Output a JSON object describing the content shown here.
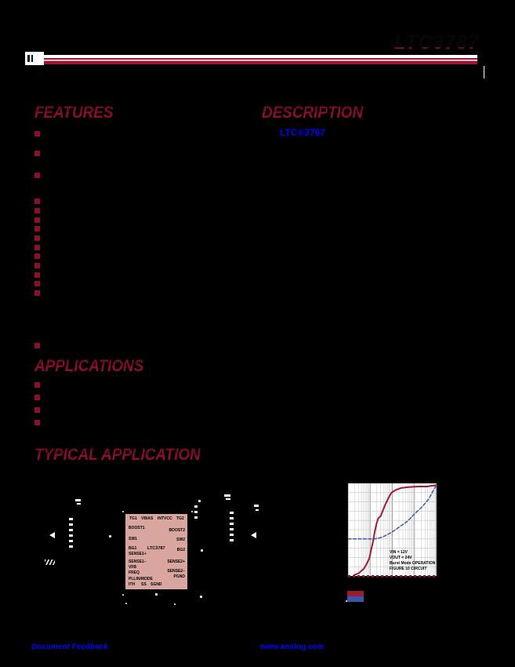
{
  "page": {
    "part_number": "LTC3787",
    "header_rule_color": "#9a1632",
    "footer": {
      "feedback_link": "Document Feedback",
      "website_link": "www.analog.com"
    }
  },
  "sections": {
    "features_title": "FEATURES",
    "description_title": "DESCRIPTION",
    "description_link": "LTC®3787",
    "applications_title": "APPLICATIONS",
    "typical_application_title": "TYPICAL APPLICATION",
    "features_bullet_count": 15,
    "applications_bullet_count": 4
  },
  "schematic": {
    "ic_label": "LTC3787",
    "ic_fill_color": "#d8a69f",
    "pins": {
      "top": [
        "TG1",
        "VBIAS",
        "INTVCC",
        "TG2"
      ],
      "left": [
        "BOOST1",
        "SW1",
        "BG1",
        "SENSE1+",
        "SENSE1−",
        "VFB",
        "FREQ",
        "PLLIN/MODE"
      ],
      "right": [
        "BOOST2",
        "SW2",
        "BG2",
        "SENSE2+",
        "SENSE2−",
        "PGND"
      ],
      "bottom": [
        "ITH",
        "SS",
        "SGND"
      ]
    }
  },
  "chart_data": {
    "type": "line",
    "x_axis": {
      "scale": "log",
      "decades": 4
    },
    "y_axis": {
      "divisions": 10
    },
    "grid": true,
    "series": [
      {
        "name": "efficiency-curve",
        "color": "#9b1b33",
        "style": "solid",
        "points_frac": [
          [
            0.07,
            0.99
          ],
          [
            0.12,
            0.97
          ],
          [
            0.18,
            0.92
          ],
          [
            0.21,
            0.87
          ],
          [
            0.24,
            0.81
          ],
          [
            0.26,
            0.72
          ],
          [
            0.28,
            0.64
          ],
          [
            0.3,
            0.53
          ],
          [
            0.32,
            0.44
          ],
          [
            0.34,
            0.38
          ],
          [
            0.37,
            0.35
          ],
          [
            0.39,
            0.3
          ],
          [
            0.42,
            0.23
          ],
          [
            0.46,
            0.15
          ],
          [
            0.49,
            0.1
          ],
          [
            0.54,
            0.07
          ],
          [
            0.6,
            0.05
          ],
          [
            0.68,
            0.04
          ],
          [
            0.8,
            0.034
          ],
          [
            0.89,
            0.034
          ],
          [
            0.99,
            0.02
          ]
        ]
      },
      {
        "name": "power-loss-curve",
        "color": "#4059aa",
        "style": "dashed",
        "points_frac": [
          [
            0.0,
            0.6
          ],
          [
            0.1,
            0.6
          ],
          [
            0.2,
            0.6
          ],
          [
            0.3,
            0.6
          ],
          [
            0.35,
            0.59
          ],
          [
            0.39,
            0.58
          ],
          [
            0.49,
            0.53
          ],
          [
            0.58,
            0.47
          ],
          [
            0.67,
            0.41
          ],
          [
            0.75,
            0.33
          ],
          [
            0.84,
            0.25
          ],
          [
            0.91,
            0.17
          ],
          [
            0.99,
            0.03
          ]
        ]
      }
    ],
    "annotations": [
      "VIN = 12V",
      "VOUT = 24V",
      "Burst Mode OPERATION",
      "FIGURE 10 CIRCUIT"
    ],
    "legend_swatches": [
      {
        "name": "red-swatch",
        "color": "#9b1b33"
      },
      {
        "name": "blue-swatch",
        "color": "#3a57a7"
      }
    ]
  }
}
